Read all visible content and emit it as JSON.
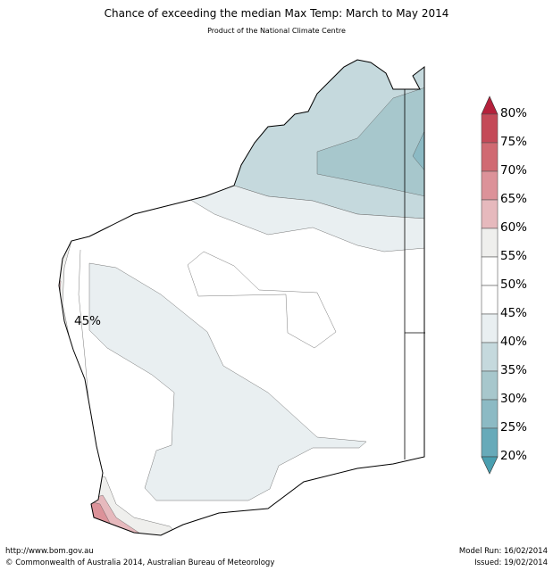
{
  "title": "Chance of exceeding the median Max Temp: March to May 2014",
  "subtitle": "Product of the National Climate Centre",
  "map_label": "45%",
  "colorbar": {
    "labels": [
      "80%",
      "75%",
      "70%",
      "65%",
      "60%",
      "55%",
      "50%",
      "45%",
      "40%",
      "35%",
      "30%",
      "25%",
      "20%"
    ],
    "colors": [
      "#c44a58",
      "#d06a72",
      "#dc9299",
      "#e6b9bd",
      "#efefed",
      "#ffffff",
      "#ffffff",
      "#e9eff1",
      "#c5d9dd",
      "#a7c7cc",
      "#8cbac4",
      "#67aab9"
    ],
    "over_color": "#b5213b",
    "under_color": "#4a9fb0"
  },
  "footer": {
    "url": "http://www.bom.gov.au",
    "copyright": "©  Commonwealth of Australia 2014, Australian Bureau of Meteorology",
    "model_run": "Model Run: 16/02/2014",
    "issued": "Issued: 19/02/2014"
  }
}
